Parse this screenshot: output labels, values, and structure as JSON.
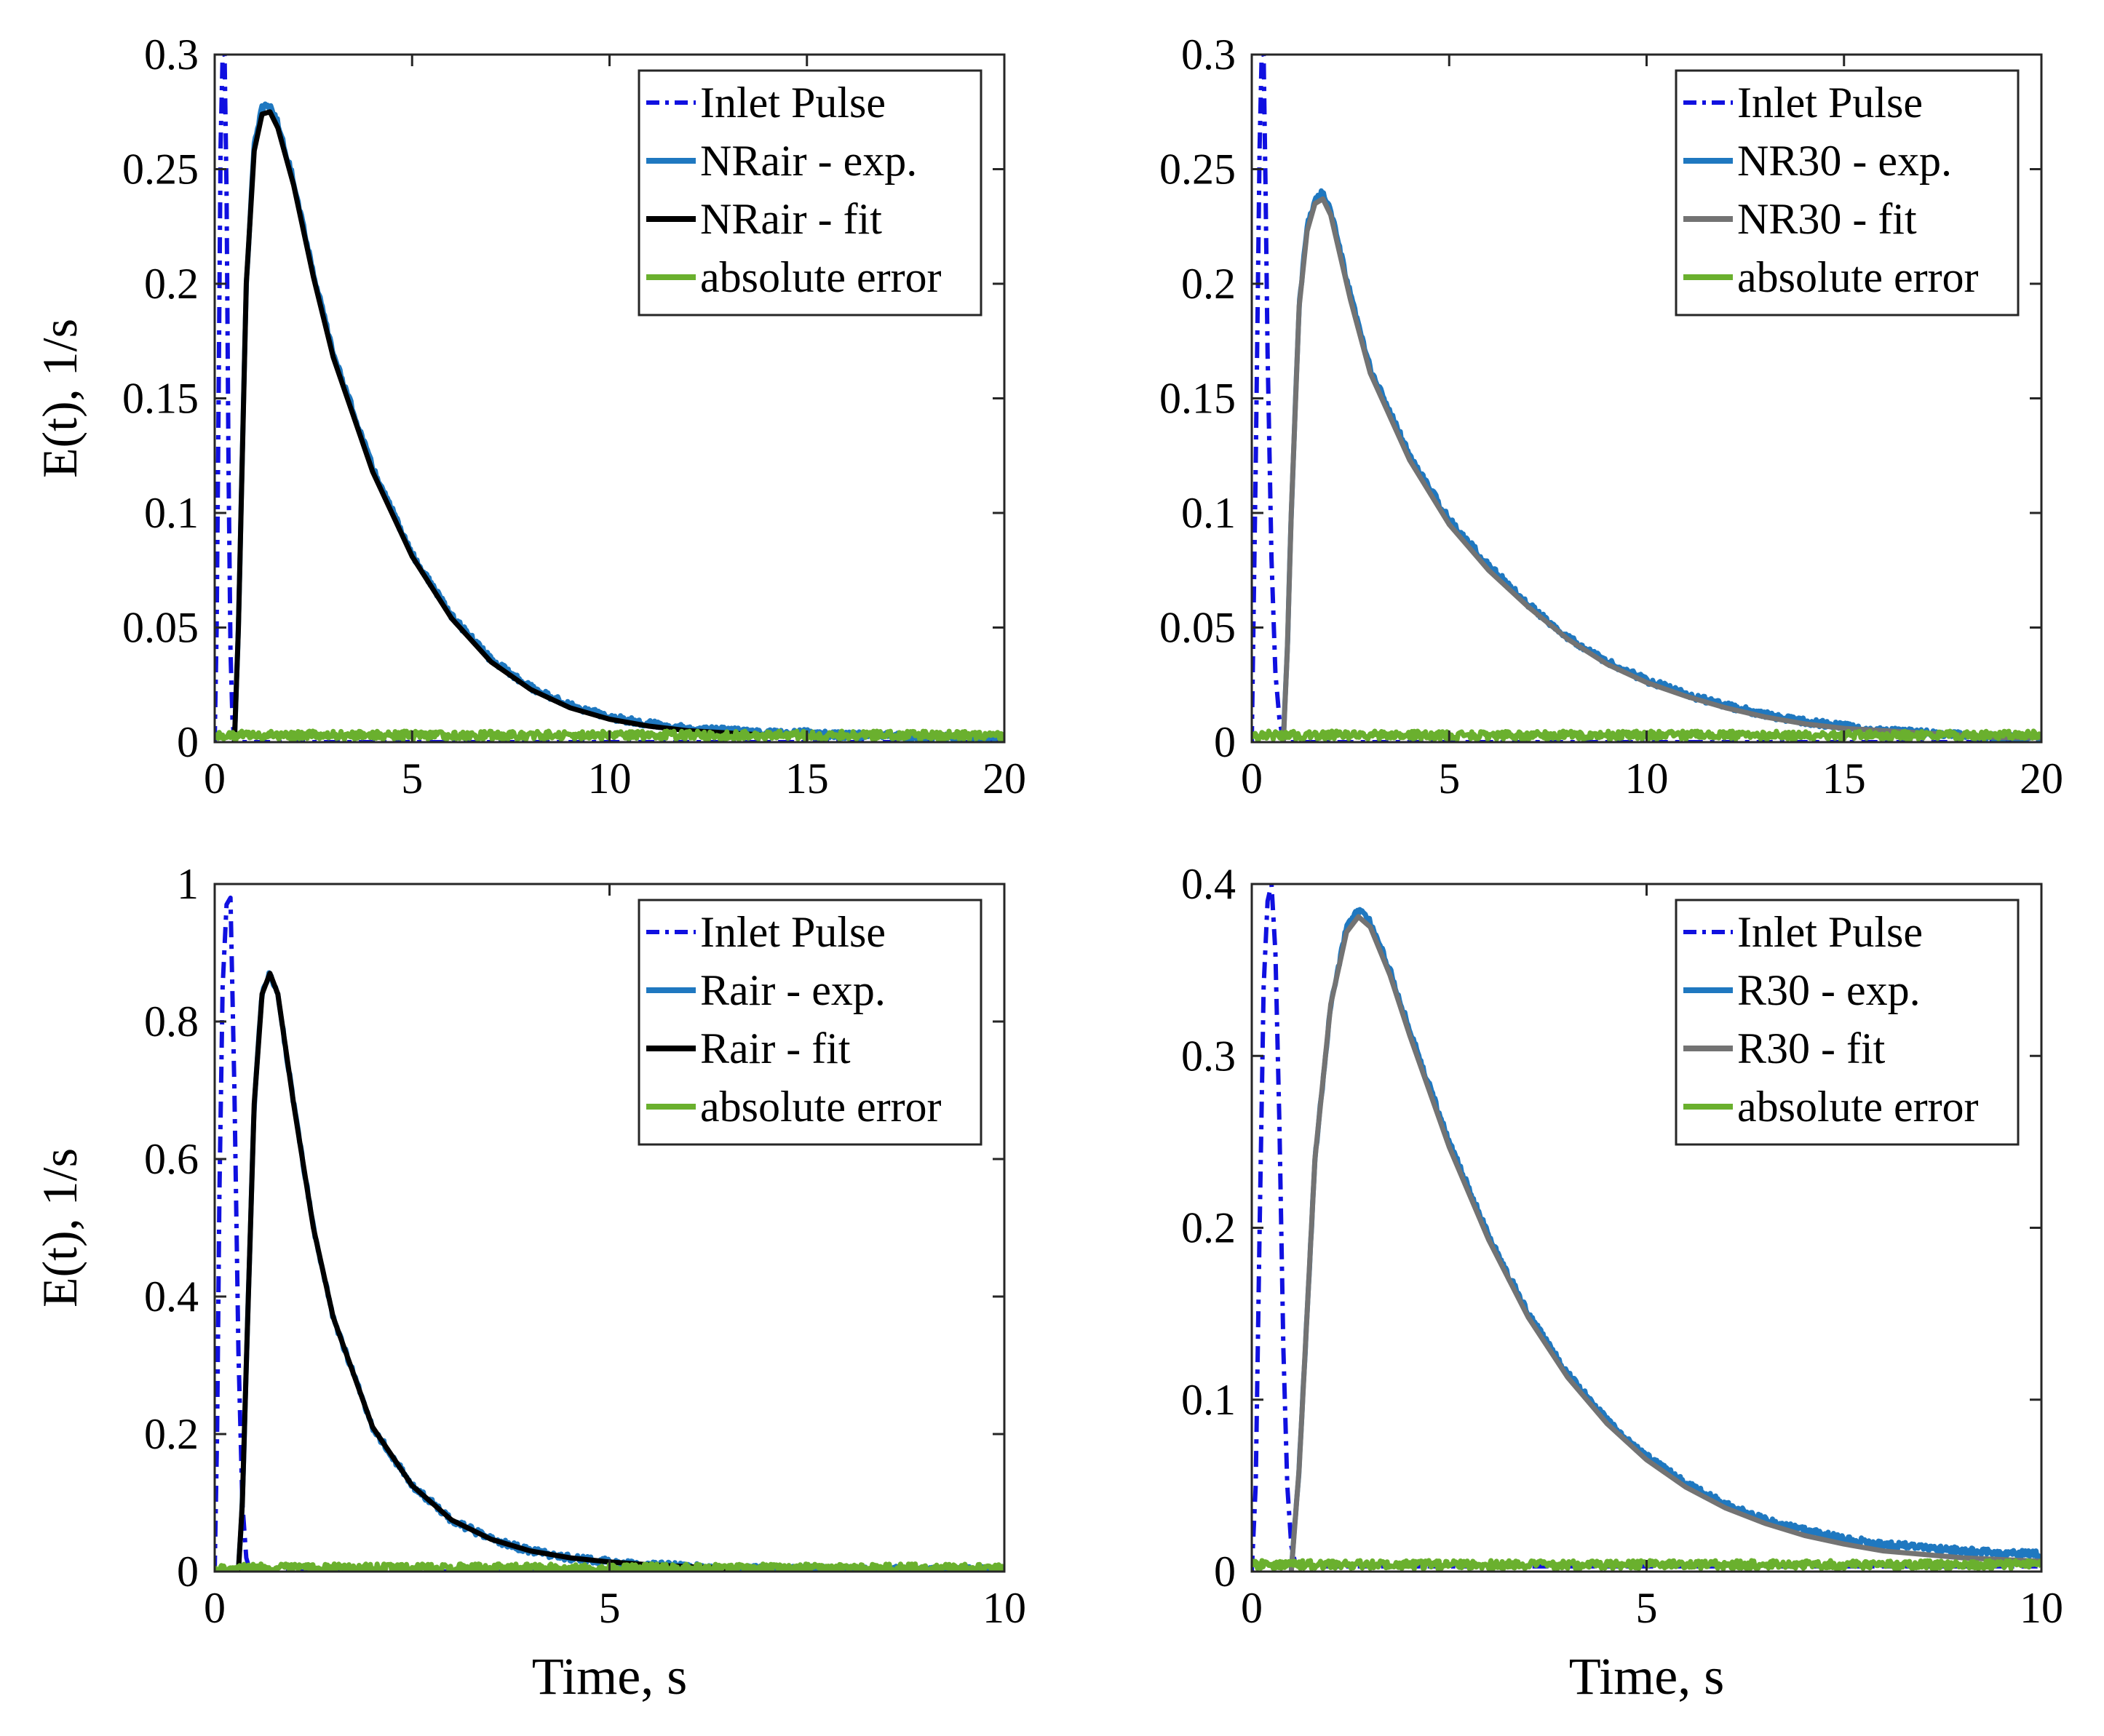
{
  "figure": {
    "xlabel": "Time, s",
    "ylabel": "E(t), 1/s",
    "colors": {
      "inlet": "#1010E0",
      "exp": "#1F78C0",
      "fit_black": "#000000",
      "fit_gray": "#737373",
      "error": "#6AB02E"
    }
  },
  "chart_data": [
    {
      "id": "top-left",
      "type": "line",
      "xlabel": "",
      "ylabel": "E(t), 1/s",
      "xlim": [
        0,
        20
      ],
      "ylim": [
        0,
        0.3
      ],
      "xticks": [
        0,
        5,
        10,
        15,
        20
      ],
      "xtick_labels": [
        "0",
        "5",
        "10",
        "15",
        "20"
      ],
      "yticks": [
        0,
        0.05,
        0.1,
        0.15,
        0.2,
        0.25,
        0.3
      ],
      "ytick_labels": [
        "0",
        "0.05",
        "0.1",
        "0.15",
        "0.2",
        "0.25",
        "0.3"
      ],
      "legend_position": "top-right",
      "series": [
        {
          "name": "Inlet Pulse",
          "style": "dashdot",
          "color": "#1010E0",
          "x": [
            0.0,
            0.05,
            0.1,
            0.15,
            0.2,
            0.25,
            0.3,
            0.35,
            0.4,
            0.45,
            0.5,
            20
          ],
          "y": [
            0.0,
            0.05,
            0.15,
            0.26,
            0.3,
            0.3,
            0.24,
            0.12,
            0.04,
            0.01,
            0.0,
            0.0
          ]
        },
        {
          "name": "NRair - exp.",
          "style": "solid",
          "color": "#1F78C0",
          "noisy": true,
          "x": [
            0.5,
            0.6,
            0.8,
            1.0,
            1.2,
            1.4,
            1.6,
            2.0,
            2.5,
            3.0,
            4.0,
            5.0,
            6.0,
            7.0,
            8.0,
            9.0,
            10.0,
            11.0,
            12.0,
            13.0,
            14.0,
            15.0,
            16.0,
            17.0,
            18.0,
            19.0,
            20.0
          ],
          "y": [
            0.0,
            0.05,
            0.2,
            0.26,
            0.277,
            0.278,
            0.27,
            0.245,
            0.205,
            0.17,
            0.12,
            0.082,
            0.055,
            0.036,
            0.024,
            0.016,
            0.011,
            0.008,
            0.006,
            0.005,
            0.004,
            0.004,
            0.003,
            0.003,
            0.002,
            0.002,
            0.002
          ]
        },
        {
          "name": "NRair - fit",
          "style": "solid",
          "color": "#000000",
          "x": [
            0.5,
            0.6,
            0.8,
            1.0,
            1.2,
            1.4,
            1.6,
            2.0,
            2.5,
            3.0,
            4.0,
            5.0,
            6.0,
            7.0,
            8.0,
            9.0,
            10.0,
            11.0,
            12.0,
            13.0,
            14.0
          ],
          "y": [
            0.0,
            0.05,
            0.2,
            0.258,
            0.274,
            0.275,
            0.268,
            0.243,
            0.203,
            0.168,
            0.118,
            0.081,
            0.054,
            0.035,
            0.023,
            0.015,
            0.01,
            0.007,
            0.005,
            0.004,
            0.003
          ]
        },
        {
          "name": "absolute error",
          "style": "solid",
          "color": "#6AB02E",
          "noisy": true,
          "x": [
            0,
            20
          ],
          "y": [
            0.003,
            0.003
          ]
        }
      ]
    },
    {
      "id": "top-right",
      "type": "line",
      "xlabel": "",
      "ylabel": "",
      "xlim": [
        0,
        20
      ],
      "ylim": [
        0,
        0.3
      ],
      "xticks": [
        0,
        5,
        10,
        15,
        20
      ],
      "xtick_labels": [
        "0",
        "5",
        "10",
        "15",
        "20"
      ],
      "yticks": [
        0,
        0.05,
        0.1,
        0.15,
        0.2,
        0.25,
        0.3
      ],
      "ytick_labels": [
        "0",
        "0.05",
        "0.1",
        "0.15",
        "0.2",
        "0.25",
        "0.3"
      ],
      "legend_position": "top-right",
      "series": [
        {
          "name": "Inlet Pulse",
          "style": "dashdot",
          "color": "#1010E0",
          "x": [
            0.0,
            0.1,
            0.2,
            0.25,
            0.3,
            0.35,
            0.4,
            0.5,
            0.6,
            0.7,
            0.8,
            20
          ],
          "y": [
            0.0,
            0.12,
            0.26,
            0.3,
            0.3,
            0.24,
            0.17,
            0.08,
            0.03,
            0.01,
            0.0,
            0.0
          ]
        },
        {
          "name": "NR30 - exp.",
          "style": "solid",
          "color": "#1F78C0",
          "noisy": true,
          "x": [
            0.8,
            0.9,
            1.0,
            1.2,
            1.4,
            1.6,
            1.8,
            2.0,
            2.5,
            3.0,
            4.0,
            5.0,
            6.0,
            7.0,
            8.0,
            9.0,
            10.0,
            11.0,
            12.0,
            13.0,
            14.0,
            15.0,
            16.0,
            17.0,
            18.0,
            19.0,
            20.0
          ],
          "y": [
            0.0,
            0.04,
            0.1,
            0.19,
            0.225,
            0.237,
            0.24,
            0.232,
            0.195,
            0.163,
            0.125,
            0.097,
            0.077,
            0.06,
            0.046,
            0.035,
            0.027,
            0.021,
            0.016,
            0.012,
            0.009,
            0.007,
            0.005,
            0.004,
            0.003,
            0.002,
            0.002
          ]
        },
        {
          "name": "NR30 - fit",
          "style": "solid",
          "color": "#737373",
          "x": [
            0.8,
            0.9,
            1.0,
            1.2,
            1.4,
            1.6,
            1.8,
            2.0,
            2.5,
            3.0,
            4.0,
            5.0,
            6.0,
            7.0,
            8.0,
            9.0,
            10.0,
            11.0,
            12.0,
            13.0,
            14.0,
            15.0,
            16.0,
            17.0,
            18.0,
            19.0,
            20.0
          ],
          "y": [
            0.0,
            0.04,
            0.1,
            0.19,
            0.223,
            0.235,
            0.237,
            0.23,
            0.193,
            0.161,
            0.123,
            0.095,
            0.075,
            0.059,
            0.045,
            0.034,
            0.026,
            0.02,
            0.015,
            0.011,
            0.008,
            0.006,
            0.005,
            0.004,
            0.003,
            0.002,
            0.002
          ]
        },
        {
          "name": "absolute error",
          "style": "solid",
          "color": "#6AB02E",
          "noisy": true,
          "x": [
            0,
            20
          ],
          "y": [
            0.003,
            0.003
          ]
        }
      ]
    },
    {
      "id": "bottom-left",
      "type": "line",
      "xlabel": "Time, s",
      "ylabel": "E(t), 1/s",
      "xlim": [
        0,
        10
      ],
      "ylim": [
        0,
        1
      ],
      "xticks": [
        0,
        5,
        10
      ],
      "xtick_labels": [
        "0",
        "5",
        "10"
      ],
      "yticks": [
        0,
        0.2,
        0.4,
        0.6,
        0.8,
        1
      ],
      "ytick_labels": [
        "0",
        "0.2",
        "0.4",
        "0.6",
        "0.8",
        "1"
      ],
      "legend_position": "top-right",
      "series": [
        {
          "name": "Inlet Pulse",
          "style": "dashdot",
          "color": "#1010E0",
          "x": [
            0.0,
            0.03,
            0.06,
            0.1,
            0.15,
            0.2,
            0.25,
            0.3,
            0.35,
            0.4,
            0.45,
            10
          ],
          "y": [
            0.0,
            0.2,
            0.55,
            0.85,
            0.97,
            0.98,
            0.7,
            0.32,
            0.1,
            0.02,
            0.0,
            0.0
          ]
        },
        {
          "name": "Rair - exp.",
          "style": "solid",
          "color": "#1F78C0",
          "noisy": true,
          "x": [
            0.3,
            0.35,
            0.4,
            0.5,
            0.6,
            0.7,
            0.8,
            1.0,
            1.25,
            1.5,
            2.0,
            2.5,
            3.0,
            3.5,
            4.0,
            4.5,
            5.0,
            5.5,
            6.0,
            6.5,
            7.0,
            8.0,
            9.0,
            10.0
          ],
          "y": [
            0.0,
            0.1,
            0.3,
            0.68,
            0.84,
            0.87,
            0.84,
            0.68,
            0.5,
            0.37,
            0.21,
            0.125,
            0.075,
            0.047,
            0.03,
            0.02,
            0.014,
            0.01,
            0.007,
            0.005,
            0.004,
            0.003,
            0.003,
            0.002
          ]
        },
        {
          "name": "Rair - fit",
          "style": "solid",
          "color": "#000000",
          "x": [
            0.3,
            0.35,
            0.4,
            0.5,
            0.6,
            0.7,
            0.8,
            1.0,
            1.25,
            1.5,
            2.0,
            2.5,
            3.0,
            3.5,
            4.0,
            4.5,
            5.0,
            5.5,
            6.0,
            6.5
          ],
          "y": [
            0.0,
            0.1,
            0.3,
            0.68,
            0.84,
            0.87,
            0.84,
            0.68,
            0.5,
            0.37,
            0.21,
            0.125,
            0.075,
            0.047,
            0.03,
            0.02,
            0.014,
            0.01,
            0.007,
            0.005
          ]
        },
        {
          "name": "absolute error",
          "style": "solid",
          "color": "#6AB02E",
          "noisy": true,
          "x": [
            0,
            10
          ],
          "y": [
            0.005,
            0.005
          ]
        }
      ]
    },
    {
      "id": "bottom-right",
      "type": "line",
      "xlabel": "Time, s",
      "ylabel": "",
      "xlim": [
        0,
        10
      ],
      "ylim": [
        0,
        0.4
      ],
      "xticks": [
        0,
        5,
        10
      ],
      "xtick_labels": [
        "0",
        "5",
        "10"
      ],
      "yticks": [
        0,
        0.1,
        0.2,
        0.3,
        0.4
      ],
      "ytick_labels": [
        "0",
        "0.1",
        "0.2",
        "0.3",
        "0.4"
      ],
      "legend_position": "top-right",
      "series": [
        {
          "name": "Inlet Pulse",
          "style": "dashdot",
          "color": "#1010E0",
          "x": [
            0.0,
            0.05,
            0.1,
            0.15,
            0.2,
            0.25,
            0.3,
            0.35,
            0.4,
            0.45,
            0.5,
            0.55,
            0.6,
            10
          ],
          "y": [
            0.0,
            0.05,
            0.2,
            0.34,
            0.39,
            0.4,
            0.36,
            0.26,
            0.13,
            0.05,
            0.015,
            0.005,
            0.003,
            0.003
          ]
        },
        {
          "name": "R30 - exp.",
          "style": "solid",
          "color": "#1F78C0",
          "noisy": true,
          "x": [
            0.5,
            0.6,
            0.7,
            0.8,
            1.0,
            1.2,
            1.35,
            1.5,
            1.75,
            2.0,
            2.5,
            3.0,
            3.5,
            4.0,
            4.5,
            5.0,
            5.5,
            6.0,
            6.5,
            7.0,
            7.5,
            8.0,
            8.5,
            9.0,
            9.5,
            10.0
          ],
          "y": [
            0.0,
            0.06,
            0.15,
            0.24,
            0.33,
            0.375,
            0.385,
            0.378,
            0.35,
            0.315,
            0.25,
            0.195,
            0.15,
            0.115,
            0.088,
            0.067,
            0.051,
            0.039,
            0.03,
            0.024,
            0.019,
            0.016,
            0.014,
            0.012,
            0.011,
            0.01
          ]
        },
        {
          "name": "R30 - fit",
          "style": "solid",
          "color": "#737373",
          "x": [
            0.5,
            0.6,
            0.7,
            0.8,
            1.0,
            1.2,
            1.35,
            1.5,
            1.75,
            2.0,
            2.5,
            3.0,
            3.5,
            4.0,
            4.5,
            5.0,
            5.5,
            6.0,
            6.5,
            7.0,
            7.5,
            8.0,
            8.5,
            9.0,
            9.5,
            10.0
          ],
          "y": [
            0.0,
            0.06,
            0.15,
            0.24,
            0.33,
            0.372,
            0.381,
            0.375,
            0.347,
            0.312,
            0.247,
            0.193,
            0.148,
            0.113,
            0.086,
            0.065,
            0.049,
            0.037,
            0.028,
            0.021,
            0.016,
            0.012,
            0.01,
            0.008,
            0.007,
            0.006
          ]
        },
        {
          "name": "absolute error",
          "style": "solid",
          "color": "#6AB02E",
          "noisy": true,
          "x": [
            0,
            10
          ],
          "y": [
            0.004,
            0.004
          ]
        }
      ]
    }
  ]
}
